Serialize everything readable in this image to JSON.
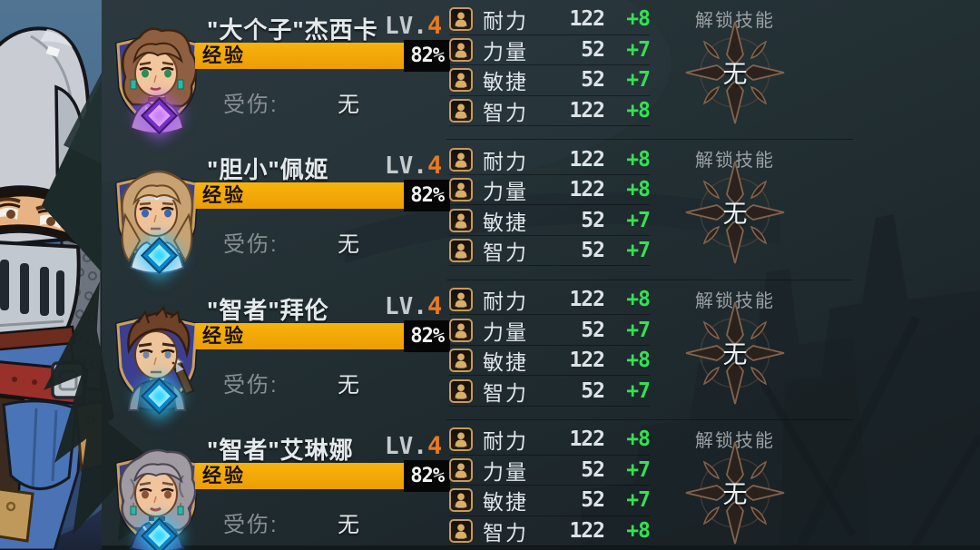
{
  "colors": {
    "exp_bar_orange": "#F2A60A",
    "bonus_green": "#33E253",
    "level_orange": "#E87A22",
    "frame_gold": "#C59B5B",
    "gem_purple": "#B25CFF",
    "gem_cyan": "#2EC8FF",
    "emblem_bronze": "#8A6850"
  },
  "characters": [
    {
      "name": "\"大个子\"杰西卡",
      "level_prefix": "LV.",
      "level": "4",
      "exp_label": "经验",
      "exp_percent": "82%",
      "exp_fill": 82,
      "injury_label": "受伤:",
      "injury_value": "无",
      "unlock_skills_label": "解锁技能",
      "skills_value": "无",
      "portrait": "jessica",
      "gem": "purple",
      "stats": [
        {
          "icon": "person-icon",
          "label": "耐力",
          "value": "122",
          "bonus": "+8"
        },
        {
          "icon": "person-icon",
          "label": "力量",
          "value": "52",
          "bonus": "+7"
        },
        {
          "icon": "person-icon",
          "label": "敏捷",
          "value": "52",
          "bonus": "+7"
        },
        {
          "icon": "person-icon",
          "label": "智力",
          "value": "122",
          "bonus": "+8"
        }
      ]
    },
    {
      "name": "\"胆小\"佩姬",
      "level_prefix": "LV.",
      "level": "4",
      "exp_label": "经验",
      "exp_percent": "82%",
      "exp_fill": 82,
      "injury_label": "受伤:",
      "injury_value": "无",
      "unlock_skills_label": "解锁技能",
      "skills_value": "无",
      "portrait": "peggy",
      "gem": "cyan",
      "stats": [
        {
          "icon": "person-icon",
          "label": "耐力",
          "value": "122",
          "bonus": "+8"
        },
        {
          "icon": "person-icon",
          "label": "力量",
          "value": "122",
          "bonus": "+8"
        },
        {
          "icon": "person-icon",
          "label": "敏捷",
          "value": "52",
          "bonus": "+7"
        },
        {
          "icon": "person-icon",
          "label": "智力",
          "value": "52",
          "bonus": "+7"
        }
      ]
    },
    {
      "name": "\"智者\"拜伦",
      "level_prefix": "LV.",
      "level": "4",
      "exp_label": "经验",
      "exp_percent": "82%",
      "exp_fill": 82,
      "injury_label": "受伤:",
      "injury_value": "无",
      "unlock_skills_label": "解锁技能",
      "skills_value": "无",
      "portrait": "byron",
      "gem": "cyan",
      "stats": [
        {
          "icon": "person-icon",
          "label": "耐力",
          "value": "122",
          "bonus": "+8"
        },
        {
          "icon": "person-icon",
          "label": "力量",
          "value": "52",
          "bonus": "+7"
        },
        {
          "icon": "person-icon",
          "label": "敏捷",
          "value": "122",
          "bonus": "+8"
        },
        {
          "icon": "person-icon",
          "label": "智力",
          "value": "52",
          "bonus": "+7"
        }
      ]
    },
    {
      "name": "\"智者\"艾琳娜",
      "level_prefix": "LV.",
      "level": "4",
      "exp_label": "经验",
      "exp_percent": "82%",
      "exp_fill": 82,
      "injury_label": "受伤:",
      "injury_value": "无",
      "unlock_skills_label": "解锁技能",
      "skills_value": "无",
      "portrait": "elena",
      "gem": "cyan",
      "stats": [
        {
          "icon": "person-icon",
          "label": "耐力",
          "value": "122",
          "bonus": "+8"
        },
        {
          "icon": "person-icon",
          "label": "力量",
          "value": "52",
          "bonus": "+7"
        },
        {
          "icon": "person-icon",
          "label": "敏捷",
          "value": "52",
          "bonus": "+7"
        },
        {
          "icon": "person-icon",
          "label": "智力",
          "value": "122",
          "bonus": "+8"
        }
      ]
    }
  ]
}
